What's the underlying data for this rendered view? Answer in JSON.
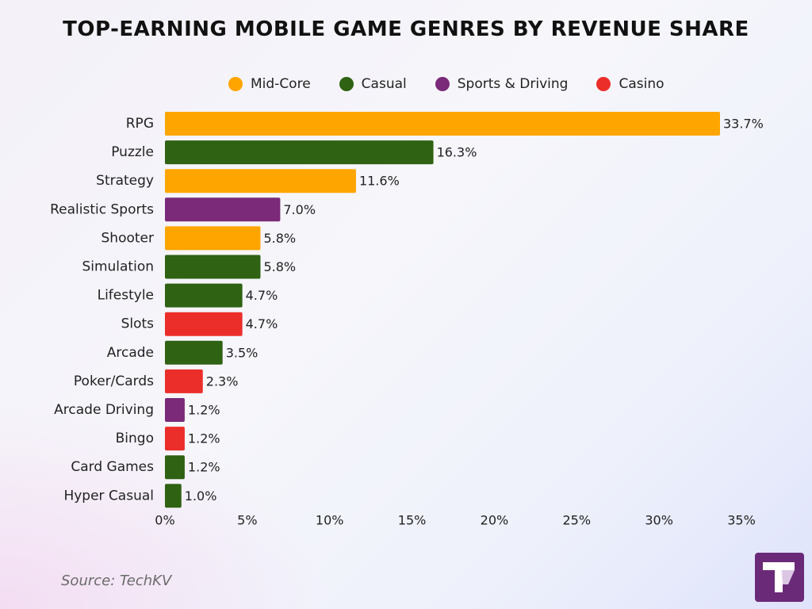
{
  "chart_data": {
    "type": "bar",
    "orientation": "horizontal",
    "title": "TOP-EARNING MOBILE GAME GENRES BY REVENUE SHARE",
    "xlabel": "",
    "ylabel": "",
    "xlim": [
      0,
      35
    ],
    "x_ticks": [
      "0%",
      "5%",
      "10%",
      "15%",
      "20%",
      "25%",
      "30%",
      "35%"
    ],
    "grid": false,
    "legend_position": "top",
    "legend": [
      {
        "name": "Mid-Core",
        "color": "#FFA500"
      },
      {
        "name": "Casual",
        "color": "#2F6212"
      },
      {
        "name": "Sports & Driving",
        "color": "#7A2A78"
      },
      {
        "name": "Casino",
        "color": "#EC2E2A"
      }
    ],
    "bars": [
      {
        "category": "RPG",
        "value": 33.7,
        "label": "33.7%",
        "group": "Mid-Core"
      },
      {
        "category": "Puzzle",
        "value": 16.3,
        "label": "16.3%",
        "group": "Casual"
      },
      {
        "category": "Strategy",
        "value": 11.6,
        "label": "11.6%",
        "group": "Mid-Core"
      },
      {
        "category": "Realistic Sports",
        "value": 7.0,
        "label": "7.0%",
        "group": "Sports & Driving"
      },
      {
        "category": "Shooter",
        "value": 5.8,
        "label": "5.8%",
        "group": "Mid-Core"
      },
      {
        "category": "Simulation",
        "value": 5.8,
        "label": "5.8%",
        "group": "Casual"
      },
      {
        "category": "Lifestyle",
        "value": 4.7,
        "label": "4.7%",
        "group": "Casual"
      },
      {
        "category": "Slots",
        "value": 4.7,
        "label": "4.7%",
        "group": "Casino"
      },
      {
        "category": "Arcade",
        "value": 3.5,
        "label": "3.5%",
        "group": "Casual"
      },
      {
        "category": "Poker/Cards",
        "value": 2.3,
        "label": "2.3%",
        "group": "Casino"
      },
      {
        "category": "Arcade Driving",
        "value": 1.2,
        "label": "1.2%",
        "group": "Sports & Driving"
      },
      {
        "category": "Bingo",
        "value": 1.2,
        "label": "1.2%",
        "group": "Casino"
      },
      {
        "category": "Card Games",
        "value": 1.2,
        "label": "1.2%",
        "group": "Casual"
      },
      {
        "category": "Hyper Casual",
        "value": 1.0,
        "label": "1.0%",
        "group": "Casual"
      }
    ]
  },
  "source": "Source: TechKV",
  "logo": {
    "icon": "techkv-logo-icon",
    "color": "#6A2A78"
  }
}
